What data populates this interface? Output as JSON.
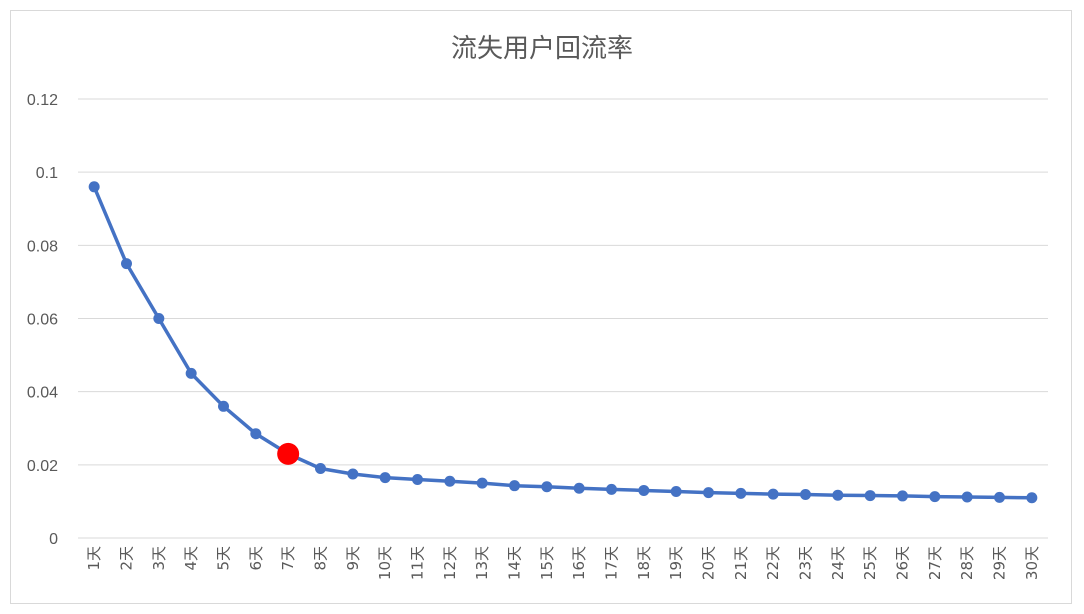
{
  "chart_data": {
    "type": "line",
    "title": "流失用户回流率",
    "xlabel": "",
    "ylabel": "",
    "ylim": [
      0,
      0.12
    ],
    "y_ticks": [
      "0",
      "0.02",
      "0.04",
      "0.06",
      "0.08",
      "0.1",
      "0.12"
    ],
    "grid": true,
    "legend": "none",
    "categories": [
      "1天",
      "2天",
      "3天",
      "4天",
      "5天",
      "6天",
      "7天",
      "8天",
      "9天",
      "10天",
      "11天",
      "12天",
      "13天",
      "14天",
      "15天",
      "16天",
      "17天",
      "18天",
      "19天",
      "20天",
      "21天",
      "22天",
      "23天",
      "24天",
      "25天",
      "26天",
      "27天",
      "28天",
      "29天",
      "30天"
    ],
    "series": [
      {
        "color": "#4472C4",
        "values": [
          0.096,
          0.075,
          0.06,
          0.045,
          0.036,
          0.0285,
          0.023,
          0.019,
          0.0175,
          0.0165,
          0.016,
          0.0155,
          0.015,
          0.0143,
          0.014,
          0.0136,
          0.0133,
          0.013,
          0.0127,
          0.0124,
          0.0122,
          0.012,
          0.0119,
          0.0117,
          0.0116,
          0.0115,
          0.0113,
          0.0112,
          0.0111,
          0.011
        ]
      }
    ],
    "highlight": {
      "index": 6,
      "color": "#FF0000"
    }
  }
}
